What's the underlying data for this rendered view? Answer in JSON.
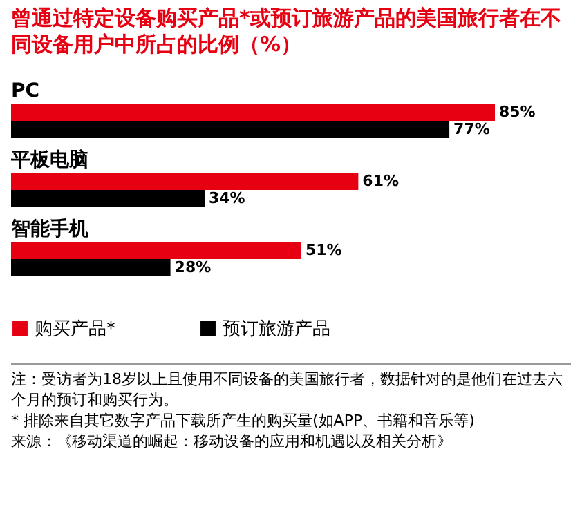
{
  "chart_data": {
    "type": "bar",
    "orientation": "horizontal",
    "title": "曾通过特定设备购买产品*或预订旅游产品的美国旅行者在不同设备用户中所占的比例（%）",
    "categories": [
      "PC",
      "平板电脑",
      "智能手机"
    ],
    "series": [
      {
        "name": "购买产品*",
        "color": "#e60012",
        "values": [
          85,
          61,
          51
        ],
        "value_labels": [
          "85%",
          "61%",
          "51%"
        ]
      },
      {
        "name": "预订旅游产品",
        "color": "#000000",
        "values": [
          77,
          34,
          28
        ],
        "value_labels": [
          "77%",
          "34%",
          "28%"
        ]
      }
    ],
    "legend": "bottom",
    "annotations": [
      "注：受访者为18岁以上且使用不同设备的美国旅行者，数据针对的是他们在过去六个月的预订和购买行为。",
      "* 排除来自其它数字产品下载所产生的购买量(如APP、书籍和音乐等)",
      "来源：《移动渠道的崛起：移动设备的应用和机遇以及相关分析》"
    ]
  }
}
